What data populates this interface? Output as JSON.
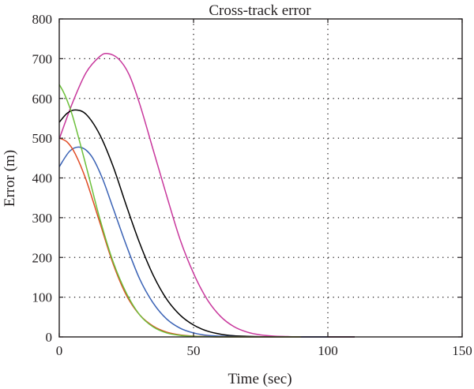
{
  "chart_data": {
    "type": "line",
    "title": "Cross-track error",
    "xlabel": "Time (sec)",
    "ylabel": "Error (m)",
    "xlim": [
      0,
      150
    ],
    "ylim": [
      0,
      800
    ],
    "xticks": [
      0,
      50,
      100,
      150
    ],
    "yticks": [
      0,
      100,
      200,
      300,
      400,
      500,
      600,
      700,
      800
    ],
    "xtick_labels": [
      "0",
      "50",
      "100",
      "150"
    ],
    "ytick_labels": [
      "0",
      "100",
      "200",
      "300",
      "400",
      "500",
      "600",
      "700",
      "800"
    ],
    "grid": "dotted",
    "legend": "none",
    "series": [
      {
        "color": "#c8379c",
        "x": [
          0,
          5,
          10,
          15,
          18,
          22,
          26,
          30,
          35,
          40,
          45,
          50,
          55,
          60,
          65,
          70,
          75,
          80,
          85,
          90,
          100,
          110
        ],
        "y": [
          498,
          590,
          665,
          705,
          713,
          700,
          660,
          585,
          470,
          355,
          245,
          160,
          95,
          52,
          26,
          12,
          5,
          2,
          1,
          0,
          0,
          0
        ]
      },
      {
        "color": "#000000",
        "x": [
          0,
          3,
          6,
          10,
          15,
          20,
          25,
          30,
          35,
          40,
          45,
          50,
          55,
          60,
          65,
          70,
          80,
          90,
          100,
          110
        ],
        "y": [
          540,
          563,
          571,
          560,
          510,
          430,
          330,
          235,
          155,
          95,
          55,
          30,
          15,
          7,
          3,
          1.5,
          0,
          0,
          0,
          0
        ]
      },
      {
        "color": "#3a62b5",
        "x": [
          0,
          4,
          8,
          12,
          16,
          20,
          25,
          30,
          35,
          40,
          45,
          50,
          55,
          60,
          70,
          80,
          90,
          100
        ],
        "y": [
          428,
          468,
          477,
          455,
          400,
          325,
          230,
          145,
          85,
          45,
          22,
          10,
          4,
          2,
          0,
          0,
          0,
          0
        ]
      },
      {
        "color": "#e04b24",
        "x": [
          0,
          3,
          6,
          10,
          15,
          20,
          25,
          30,
          35,
          40,
          45,
          50,
          55,
          60,
          70,
          80,
          90
        ],
        "y": [
          500,
          490,
          460,
          395,
          290,
          185,
          105,
          55,
          27,
          12,
          5,
          2,
          1,
          0,
          0,
          0,
          0
        ]
      },
      {
        "color": "#6cbf3a",
        "x": [
          0,
          2,
          5,
          10,
          15,
          20,
          25,
          30,
          35,
          40,
          45,
          50,
          55,
          60,
          70,
          80,
          90
        ],
        "y": [
          635,
          610,
          555,
          430,
          300,
          190,
          110,
          55,
          25,
          10,
          4,
          1.5,
          0.5,
          0,
          0,
          0,
          0
        ]
      }
    ]
  }
}
